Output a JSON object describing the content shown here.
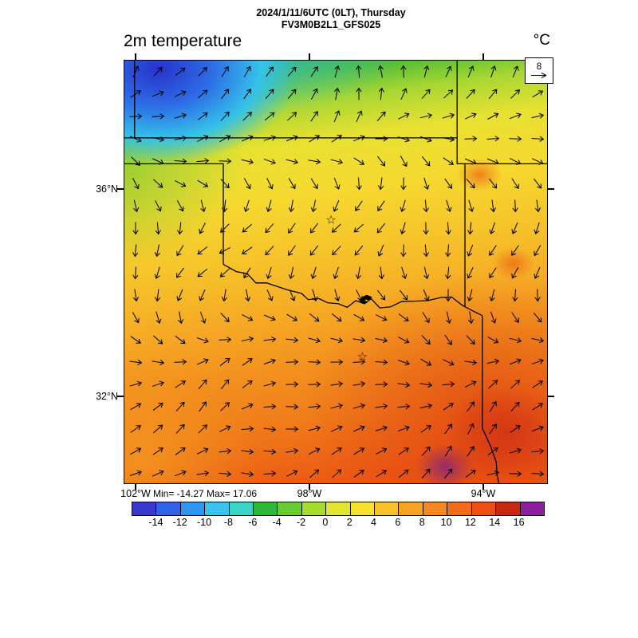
{
  "header": {
    "title_line1": "2024/1/11/6UTC (0LT), Thursday",
    "title_line2": "FV3M0B2L1_GFS025",
    "variable_label": "2m temperature",
    "units_label": "°C"
  },
  "vector_legend": {
    "value": "8"
  },
  "axes": {
    "lat_labels": [
      "36°N",
      "32°N"
    ],
    "lon_labels": [
      "102°W",
      "98°W",
      "94°W"
    ]
  },
  "stats": {
    "minmax_label": "Min= -14.27 Max= 17.06"
  },
  "colorbar": {
    "tick_labels": [
      "-14",
      "-12",
      "-10",
      "-8",
      "-6",
      "-4",
      "-2",
      "0",
      "2",
      "4",
      "6",
      "8",
      "10",
      "12",
      "14",
      "16"
    ],
    "segment_colors": [
      "#3a3ad1",
      "#2e63e8",
      "#2e96f0",
      "#38c4ee",
      "#3bd4c8",
      "#2eb838",
      "#67cc34",
      "#a6dc30",
      "#e2e632",
      "#f7e02e",
      "#f7c22a",
      "#f7a424",
      "#f58820",
      "#f26a1a",
      "#ee4f14",
      "#c92810",
      "#8c1f9e"
    ]
  },
  "map": {
    "palette": {
      "deep_blue": "#2833cc",
      "blue": "#2d6fe6",
      "cyan": "#35c2e8",
      "green": "#2fa33c",
      "light_green": "#52bd34",
      "yellow_green": "#a8d632",
      "yellow": "#e8e132",
      "gold": "#f6d92f",
      "amber": "#f6c42b",
      "orange": "#f6ab25",
      "deep_orange": "#f3931f",
      "red_orange": "#f07c1a",
      "red": "#ec5a14",
      "deep_red": "#dc3a10",
      "crimson": "#c22b1e",
      "purple": "#6b24a0",
      "red_spot": "#e84a12",
      "arrow_color": "#000000",
      "border_color": "#000000"
    }
  },
  "chart_data": {
    "type": "heatmap",
    "title": "2m temperature",
    "units": "°C",
    "valid_time": "2024/1/11/6UTC (0LT), Thursday",
    "model_run": "FV3M0B2L1_GFS025",
    "min": -14.27,
    "max": 17.06,
    "colorbar_ticks": [
      -14,
      -12,
      -10,
      -8,
      -6,
      -4,
      -2,
      0,
      2,
      4,
      6,
      8,
      10,
      12,
      14,
      16
    ],
    "lat_ticks": [
      "36°N",
      "32°N"
    ],
    "lon_ticks": [
      "102°W",
      "98°W",
      "94°W"
    ],
    "wind_reference": 8,
    "region": "Southern Great Plains (Oklahoma / North Texas)",
    "legend_position": "bottom",
    "sample_grid": {
      "lons": [
        -102,
        -100,
        -98,
        -96,
        -94
      ],
      "lats": [
        38,
        36.5,
        35,
        33.5,
        31.5
      ],
      "temps_c": [
        [
          -10,
          -4,
          0,
          1,
          1
        ],
        [
          -2,
          2,
          4,
          4,
          3
        ],
        [
          4,
          6,
          7,
          7,
          8
        ],
        [
          8,
          9,
          10,
          11,
          12
        ],
        [
          10,
          12,
          13,
          14,
          13
        ]
      ]
    },
    "overlays": [
      "wind vector arrows",
      "state borders",
      "city star markers (Oklahoma City, Dallas)",
      "Lake Texoma outline"
    ]
  }
}
